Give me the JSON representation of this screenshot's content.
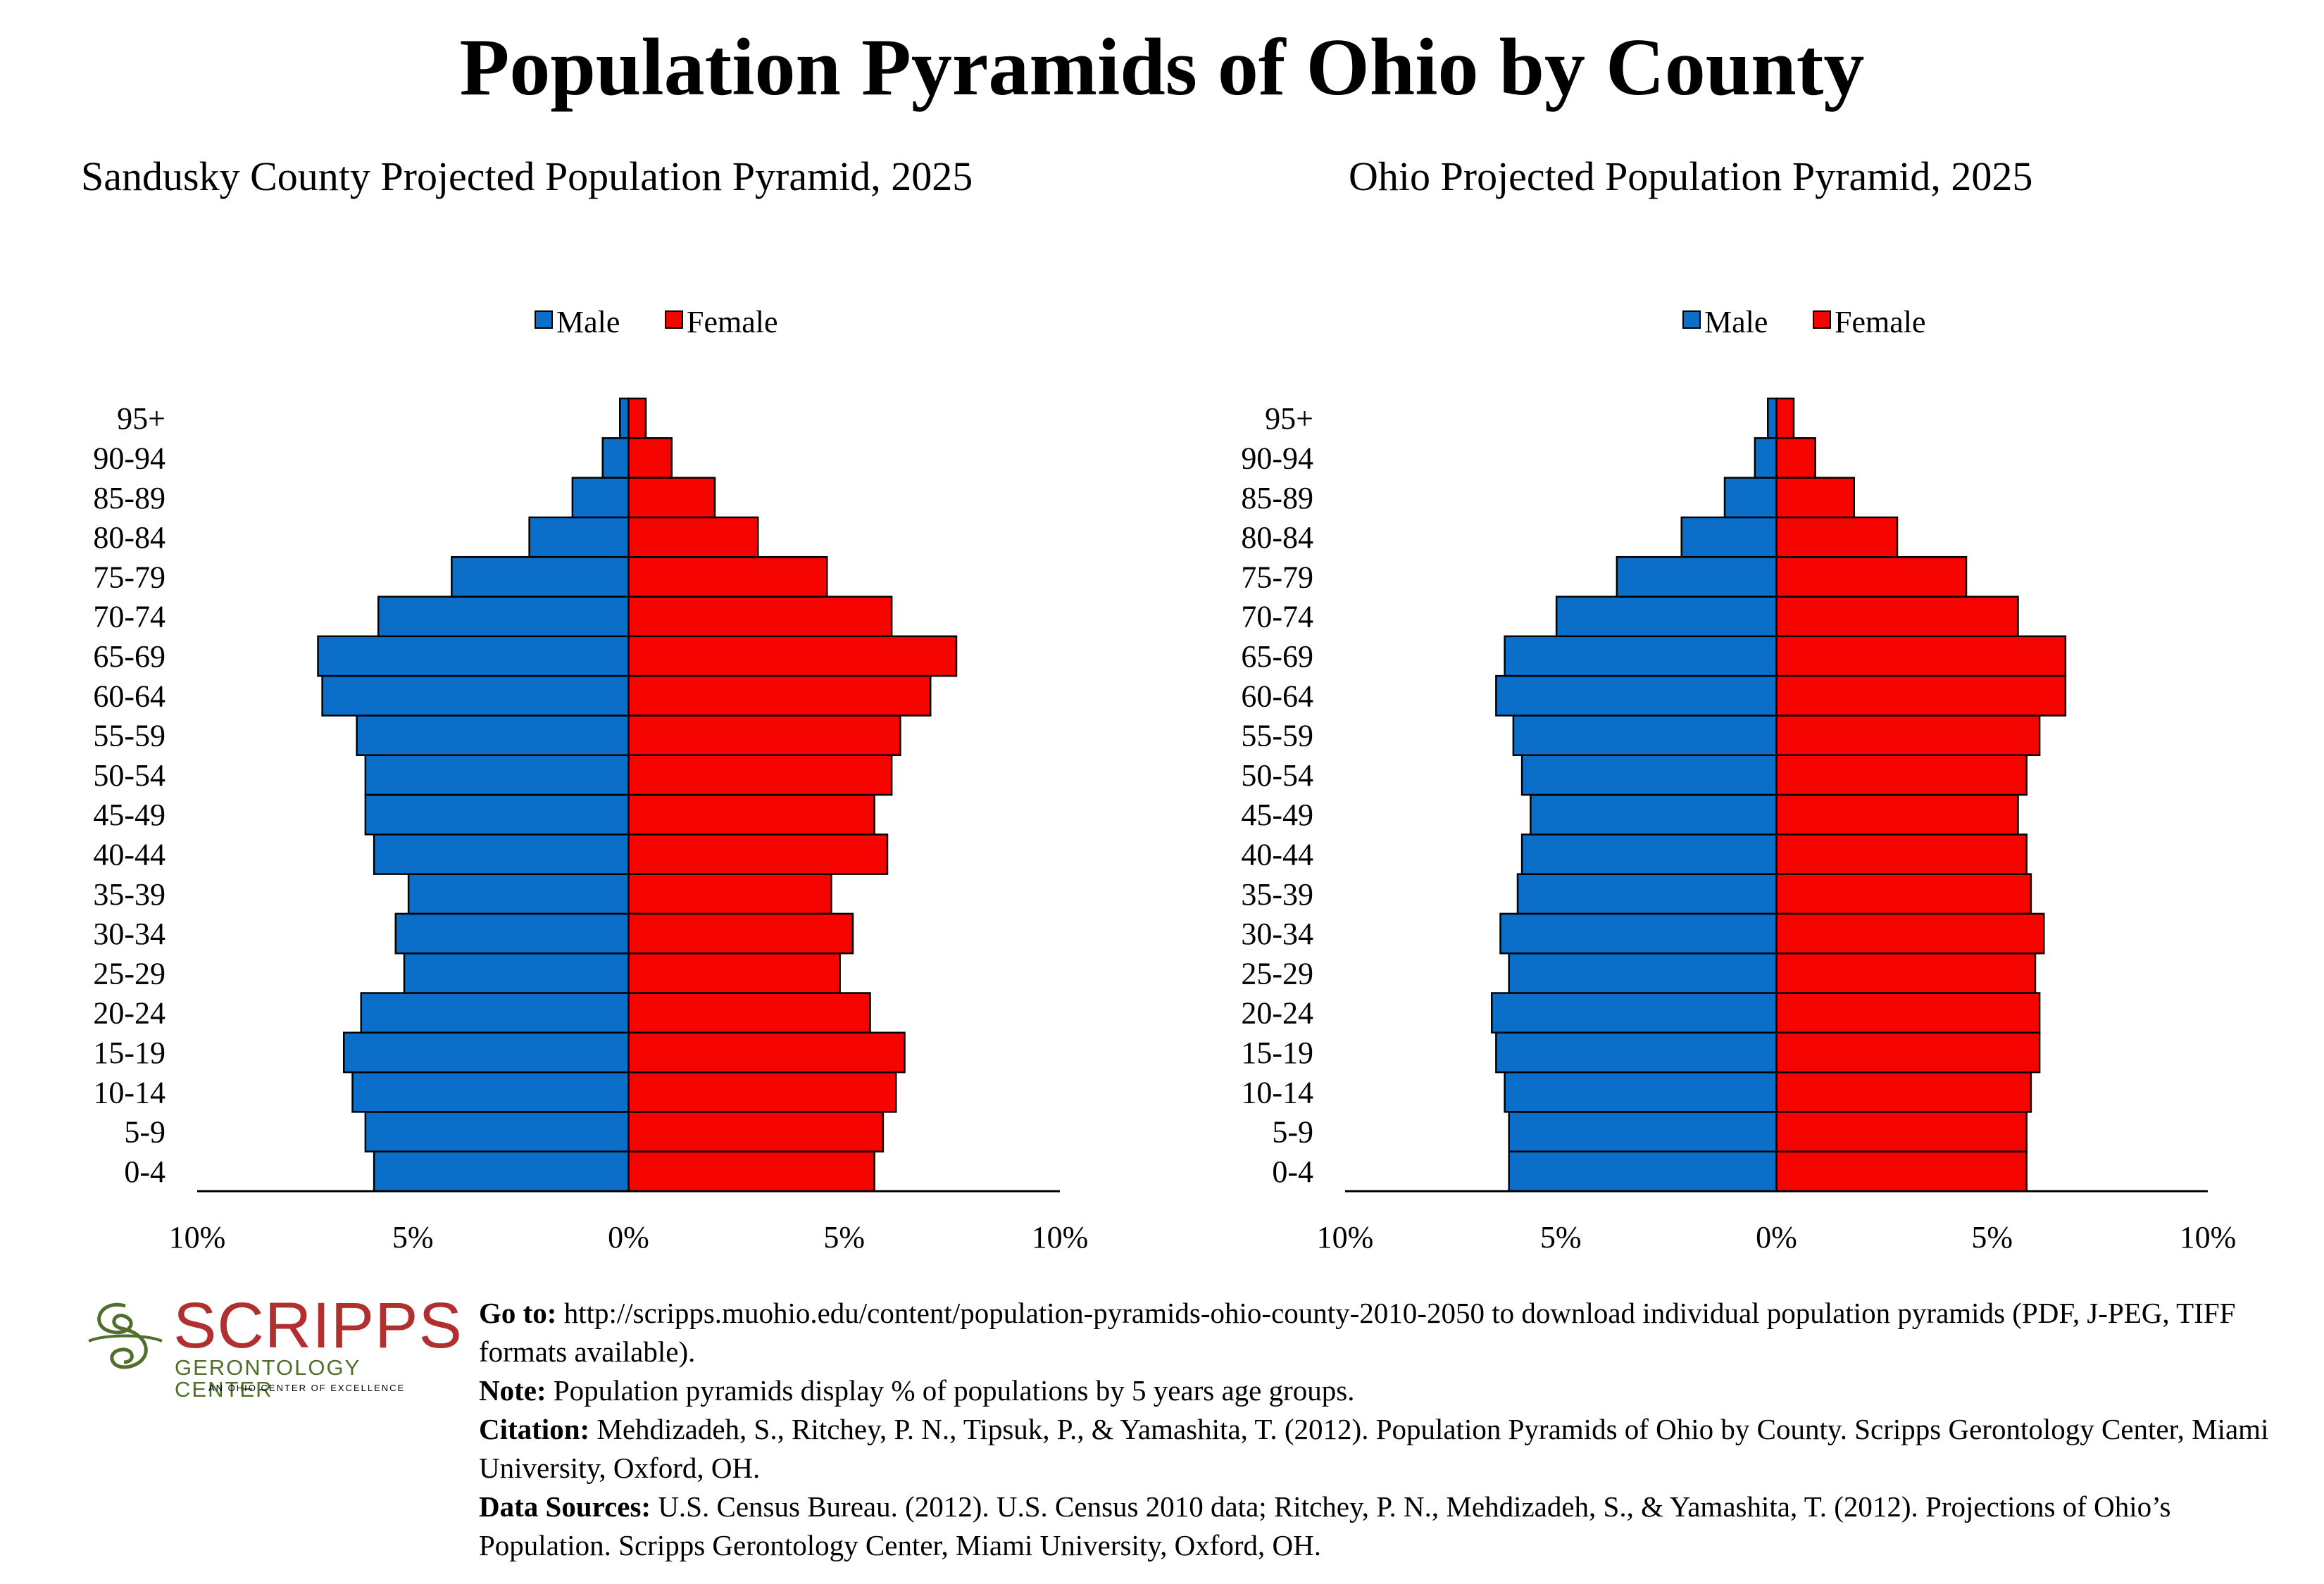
{
  "title": "Population Pyramids of Ohio by County",
  "colors": {
    "male": "#0b6ec8",
    "female": "#f60500"
  },
  "chart_data": [
    {
      "type": "bar",
      "title": "Sandusky County Projected Population Pyramid, 2025",
      "legend": [
        "Male",
        "Female"
      ],
      "legend_placement": "top-center",
      "categories": [
        "0-4",
        "5-9",
        "10-14",
        "15-19",
        "20-24",
        "25-29",
        "30-34",
        "35-39",
        "40-44",
        "45-49",
        "50-54",
        "55-59",
        "60-64",
        "65-69",
        "70-74",
        "75-79",
        "80-84",
        "85-89",
        "90-94",
        "95+"
      ],
      "series": [
        {
          "name": "Male",
          "values": [
            5.9,
            6.1,
            6.4,
            6.6,
            6.2,
            5.2,
            5.4,
            5.1,
            5.9,
            6.1,
            6.1,
            6.3,
            7.1,
            7.2,
            5.8,
            4.1,
            2.3,
            1.3,
            0.6,
            0.2
          ]
        },
        {
          "name": "Female",
          "values": [
            5.7,
            5.9,
            6.2,
            6.4,
            5.6,
            4.9,
            5.2,
            4.7,
            6.0,
            5.7,
            6.1,
            6.3,
            7.0,
            7.6,
            6.1,
            4.6,
            3.0,
            2.0,
            1.0,
            0.4
          ]
        }
      ],
      "xticks": [
        "10%",
        "5%",
        "0%",
        "5%",
        "10%"
      ],
      "xlim": [
        -10,
        10
      ],
      "grid": false
    },
    {
      "type": "bar",
      "title": "Ohio Projected Population Pyramid, 2025",
      "legend": [
        "Male",
        "Female"
      ],
      "legend_placement": "top-center",
      "categories": [
        "0-4",
        "5-9",
        "10-14",
        "15-19",
        "20-24",
        "25-29",
        "30-34",
        "35-39",
        "40-44",
        "45-49",
        "50-54",
        "55-59",
        "60-64",
        "65-69",
        "70-74",
        "75-79",
        "80-84",
        "85-89",
        "90-94",
        "95+"
      ],
      "series": [
        {
          "name": "Male",
          "values": [
            6.2,
            6.2,
            6.3,
            6.5,
            6.6,
            6.2,
            6.4,
            6.0,
            5.9,
            5.7,
            5.9,
            6.1,
            6.5,
            6.3,
            5.1,
            3.7,
            2.2,
            1.2,
            0.5,
            0.2
          ]
        },
        {
          "name": "Female",
          "values": [
            5.8,
            5.8,
            5.9,
            6.1,
            6.1,
            6.0,
            6.2,
            5.9,
            5.8,
            5.6,
            5.8,
            6.1,
            6.7,
            6.7,
            5.6,
            4.4,
            2.8,
            1.8,
            0.9,
            0.4
          ]
        }
      ],
      "xticks": [
        "10%",
        "5%",
        "0%",
        "5%",
        "10%"
      ],
      "xlim": [
        -10,
        10
      ],
      "grid": false
    }
  ],
  "footer": {
    "goto_label": "Go to:",
    "goto_text": "http://scripps.muohio.edu/content/population-pyramids-ohio-county-2010-2050 to download individual population pyramids (PDF, J-PEG, TIFF formats available).",
    "note_label": "Note:",
    "note_text": "Population pyramids display % of populations by 5 years age groups.",
    "citation_label": "Citation:",
    "citation_text": "Mehdizadeh, S., Ritchey, P. N., Tipsuk, P., & Yamashita, T. (2012). Population Pyramids of Ohio by County. Scripps Gerontology Center, Miami University, Oxford, OH.",
    "sources_label": "Data Sources:",
    "sources_text": "U.S. Census Bureau. (2012). U.S. Census 2010 data; Ritchey, P. N., Mehdizadeh, S., & Yamashita, T. (2012). Projections of Ohio’s Population. Scripps Gerontology Center, Miami University, Oxford, OH."
  },
  "logo": {
    "word": "SCRIPPS",
    "sub": "GERONTOLOGY CENTER",
    "tag": "AN OHIO CENTER OF EXCELLENCE"
  }
}
